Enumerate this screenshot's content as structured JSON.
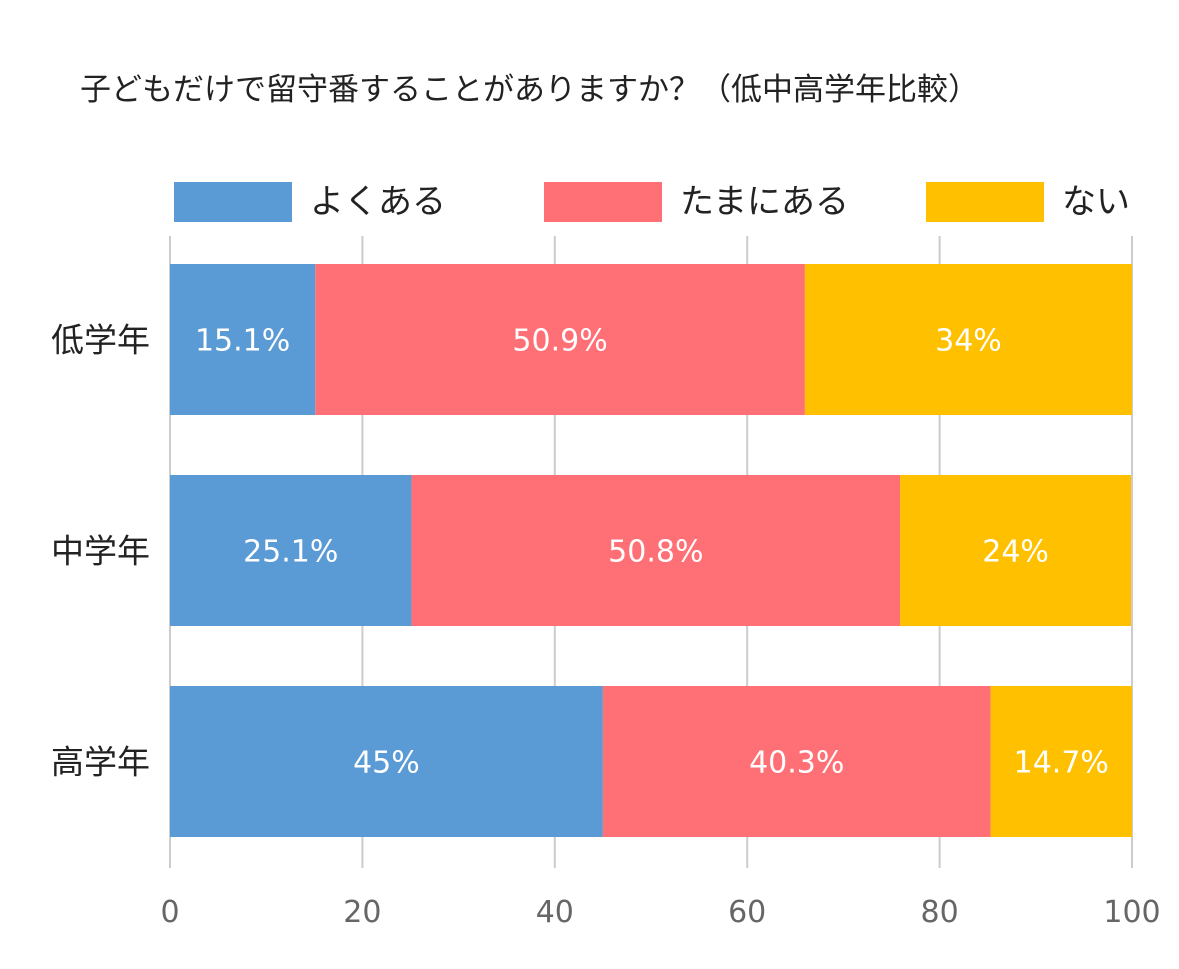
{
  "chart_data": {
    "type": "bar",
    "orientation": "horizontal",
    "stacked": true,
    "title": "子どもだけで留守番することがありますか？（低中高学年比較）",
    "categories": [
      "低学年",
      "中学年",
      "高学年"
    ],
    "series": [
      {
        "name": "よくある",
        "color": "#5b9bd5",
        "values": [
          15.1,
          25.1,
          45
        ],
        "labels": [
          "15.1%",
          "25.1%",
          "45%"
        ]
      },
      {
        "name": "たまにある",
        "color": "#ff7076",
        "values": [
          50.9,
          50.8,
          40.3
        ],
        "labels": [
          "50.9%",
          "50.8%",
          "40.3%"
        ]
      },
      {
        "name": "ない",
        "color": "#ffc000",
        "values": [
          34,
          24,
          14.7
        ],
        "labels": [
          "34%",
          "24%",
          "14.7%"
        ]
      }
    ],
    "xlim": [
      0,
      100
    ],
    "xticks": [
      "0",
      "20",
      "40",
      "60",
      "80",
      "100"
    ],
    "legend_position": "top",
    "grid": true,
    "data_label_color": "#ffffff"
  }
}
